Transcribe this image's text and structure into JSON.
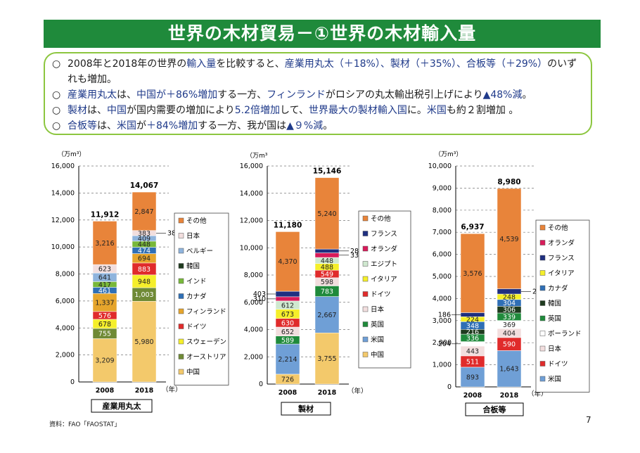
{
  "header": {
    "title": "世界の木材貿易－①世界の木材輸入量"
  },
  "summary": [
    [
      {
        "t": "2008年と2018年の世界の",
        "c": false
      },
      {
        "t": "輸入量",
        "c": true
      },
      {
        "t": "を比較すると、",
        "c": false
      },
      {
        "t": "産業用丸太（＋18%）、製材（＋35%）、合板等（＋29%）",
        "c": true
      },
      {
        "t": "のいずれも増加。",
        "c": false
      }
    ],
    [
      {
        "t": "産業用丸太",
        "c": true
      },
      {
        "t": "は、",
        "c": false
      },
      {
        "t": "中国が＋86%増加",
        "c": true
      },
      {
        "t": "する一方、",
        "c": false
      },
      {
        "t": "フィンランド",
        "c": true
      },
      {
        "t": "がロシアの丸太輸出税引上げにより",
        "c": false
      },
      {
        "t": "▲48%減",
        "c": true
      },
      {
        "t": "。",
        "c": false
      }
    ],
    [
      {
        "t": "製材",
        "c": true
      },
      {
        "t": "は、",
        "c": false
      },
      {
        "t": "中国",
        "c": true
      },
      {
        "t": "が国内需要の増加により",
        "c": false
      },
      {
        "t": "5.2倍増加",
        "c": true
      },
      {
        "t": "して、",
        "c": false
      },
      {
        "t": "世界最大の製材輸入国",
        "c": true
      },
      {
        "t": "に。",
        "c": false
      },
      {
        "t": "米国",
        "c": true
      },
      {
        "t": "も約２割増加 。",
        "c": false
      }
    ],
    [
      {
        "t": "合板等",
        "c": true
      },
      {
        "t": "は、",
        "c": false
      },
      {
        "t": "米国",
        "c": true
      },
      {
        "t": "が",
        "c": false
      },
      {
        "t": "＋84%増加",
        "c": true
      },
      {
        "t": "する一方、我が国は",
        "c": false
      },
      {
        "t": "▲９%減",
        "c": true
      },
      {
        "t": "。",
        "c": false
      }
    ]
  ],
  "summary_bullet": "○",
  "footer": {
    "source": "資料：FAO「FAOSTAT」",
    "page_number": "7"
  },
  "colors": {
    "title_bg": "#1f8a3b",
    "border": "#8cc63f",
    "highlight_text": "#1f3a8a"
  },
  "chart_data": [
    {
      "type": "bar",
      "stacked": true,
      "title": "産業用丸太",
      "unit_label": "（万m³）",
      "xlabel": "（年）",
      "categories": [
        "2008",
        "2018"
      ],
      "totals": [
        "11,912",
        "14,067"
      ],
      "ylim": [
        0,
        16000
      ],
      "yticks": [
        "0",
        "2,000",
        "4,000",
        "6,000",
        "8,000",
        "10,000",
        "12,000",
        "14,000",
        "16,000"
      ],
      "ytick_values": [
        0,
        2000,
        4000,
        6000,
        8000,
        10000,
        12000,
        14000,
        16000
      ],
      "grid": true,
      "legend_position": "right",
      "series": [
        {
          "name": "中国",
          "color": "#f3c96b",
          "values": [
            3209,
            5980
          ],
          "labels": [
            "3,209",
            "5,980"
          ]
        },
        {
          "name": "オーストリア",
          "color": "#6f8a35",
          "values": [
            755,
            1003
          ],
          "labels": [
            "755",
            "1,003"
          ]
        },
        {
          "name": "スウェーデン",
          "color": "#f5ef2a",
          "values": [
            678,
            948
          ],
          "labels": [
            "678",
            "948"
          ]
        },
        {
          "name": "ドイツ",
          "color": "#e02b2b",
          "values": [
            576,
            883
          ],
          "labels": [
            "576",
            "883"
          ]
        },
        {
          "name": "フィンランド",
          "color": "#e6a52c",
          "values": [
            1337,
            694
          ],
          "labels": [
            "1,337",
            "694"
          ]
        },
        {
          "name": "カナダ",
          "color": "#2f6fb5",
          "values": [
            461,
            474
          ],
          "labels": [
            "461",
            "474"
          ]
        },
        {
          "name": "インド",
          "color": "#78b83a",
          "values": [
            417,
            448
          ],
          "labels": [
            "417",
            "448"
          ]
        },
        {
          "name": "韓国",
          "color": "#1e3a1e",
          "values": [
            0,
            0
          ],
          "labels": [
            "",
            ""
          ]
        },
        {
          "name": "ベルギー",
          "color": "#8fb4dd",
          "values": [
            641,
            409
          ],
          "labels": [
            "641",
            "409"
          ]
        },
        {
          "name": "日本",
          "color": "#f2dede",
          "values": [
            623,
            383
          ],
          "labels": [
            "623",
            "383"
          ]
        },
        {
          "name": "その他",
          "color": "#e8843a",
          "values": [
            3216,
            2847
          ],
          "labels": [
            "3,216",
            "2,847"
          ]
        }
      ],
      "side_labels": [
        {
          "text": "383",
          "series": "日本",
          "bar": 1
        }
      ]
    },
    {
      "type": "bar",
      "stacked": true,
      "title": "製材",
      "unit_label": "（万m³",
      "xlabel": "（年）",
      "categories": [
        "2008",
        "2018"
      ],
      "totals": [
        "11,180",
        "15,146"
      ],
      "ylim": [
        0,
        16000
      ],
      "yticks": [
        "0",
        "2,000",
        "4,000",
        "6,000",
        "8,000",
        "10,000",
        "12,000",
        "14,000",
        "16,000"
      ],
      "ytick_values": [
        0,
        2000,
        4000,
        6000,
        8000,
        10000,
        12000,
        14000,
        16000
      ],
      "grid": true,
      "legend_position": "right",
      "series": [
        {
          "name": "中国",
          "color": "#f3c96b",
          "values": [
            726,
            3755
          ],
          "labels": [
            "726",
            "3,755"
          ]
        },
        {
          "name": "米国",
          "color": "#6f9fd6",
          "values": [
            2214,
            2667
          ],
          "labels": [
            "2,214",
            "2,667"
          ]
        },
        {
          "name": "英国",
          "color": "#1f8a3b",
          "values": [
            589,
            783
          ],
          "labels": [
            "589",
            "783"
          ]
        },
        {
          "name": "日本",
          "color": "#f2dede",
          "values": [
            652,
            598
          ],
          "labels": [
            "652",
            "598"
          ]
        },
        {
          "name": "ドイツ",
          "color": "#e02b2b",
          "values": [
            630,
            549
          ],
          "labels": [
            "630",
            "549"
          ]
        },
        {
          "name": "イタリア",
          "color": "#f5ef2a",
          "values": [
            673,
            488
          ],
          "labels": [
            "673",
            "488"
          ]
        },
        {
          "name": "エジプト",
          "color": "#cfe8cf",
          "values": [
            612,
            448
          ],
          "labels": [
            "612",
            "448"
          ]
        },
        {
          "name": "オランダ",
          "color": "#d81b5a",
          "values": [
            310,
            337
          ],
          "labels": [
            "",
            ""
          ]
        },
        {
          "name": "フランス",
          "color": "#1f2f80",
          "values": [
            403,
            281
          ],
          "labels": [
            "",
            ""
          ]
        },
        {
          "name": "その他",
          "color": "#e8843a",
          "values": [
            4370,
            5240
          ],
          "labels": [
            "4,370",
            "5,240"
          ]
        }
      ],
      "side_labels": [
        {
          "text": "403",
          "series": "フランス",
          "bar": 0,
          "side": "left"
        },
        {
          "text": "310",
          "series": "オランダ",
          "bar": 0,
          "side": "left"
        },
        {
          "text": "281",
          "series": "フランス",
          "bar": 1,
          "side": "right"
        },
        {
          "text": "337",
          "series": "オランダ",
          "bar": 1,
          "side": "right"
        }
      ]
    },
    {
      "type": "bar",
      "stacked": true,
      "title": "合板等",
      "unit_label": "（万m³）",
      "xlabel": "（年）",
      "categories": [
        "2008",
        "2018"
      ],
      "totals": [
        "6,937",
        "8,980"
      ],
      "ylim": [
        0,
        10000
      ],
      "yticks": [
        "0",
        "1,000",
        "2,000",
        "3,000",
        "4,000",
        "5,000",
        "6,000",
        "7,000",
        "8,000",
        "9,000",
        "10,000"
      ],
      "ytick_values": [
        0,
        1000,
        2000,
        3000,
        4000,
        5000,
        6000,
        7000,
        8000,
        9000,
        10000
      ],
      "grid": true,
      "legend_position": "right",
      "series": [
        {
          "name": "米国",
          "color": "#6f9fd6",
          "values": [
            893,
            1643
          ],
          "labels": [
            "893",
            "1,643"
          ]
        },
        {
          "name": "ドイツ",
          "color": "#e02b2b",
          "values": [
            511,
            590
          ],
          "labels": [
            "511",
            "590"
          ]
        },
        {
          "name": "日本",
          "color": "#f2dede",
          "values": [
            443,
            404
          ],
          "labels": [
            "443",
            "404"
          ]
        },
        {
          "name": "ポーランド",
          "color": "#ffffff",
          "values": [
            204,
            369
          ],
          "labels": [
            "",
            "369"
          ]
        },
        {
          "name": "英国",
          "color": "#1f8a3b",
          "values": [
            336,
            339
          ],
          "labels": [
            "336",
            "339"
          ]
        },
        {
          "name": "韓国",
          "color": "#1e3a1e",
          "values": [
            216,
            306
          ],
          "labels": [
            "216",
            "306"
          ]
        },
        {
          "name": "カナダ",
          "color": "#2f6fb5",
          "values": [
            348,
            304
          ],
          "labels": [
            "348",
            "304"
          ]
        },
        {
          "name": "イタリア",
          "color": "#f5ef2a",
          "values": [
            224,
            248
          ],
          "labels": [
            "224",
            "248"
          ]
        },
        {
          "name": "フランス",
          "color": "#1f2f80",
          "values": [
            186,
            239
          ],
          "labels": [
            "",
            ""
          ]
        },
        {
          "name": "オランダ",
          "color": "#d81b5a",
          "values": [
            0,
            0
          ],
          "labels": [
            "",
            ""
          ]
        },
        {
          "name": "その他",
          "color": "#e8843a",
          "values": [
            3576,
            4539
          ],
          "labels": [
            "3,576",
            "4,539"
          ]
        }
      ],
      "side_labels": [
        {
          "text": "186",
          "series": "フランス",
          "bar": 0,
          "side": "left"
        },
        {
          "text": "204",
          "series": "ポーランド",
          "bar": 0,
          "side": "left"
        },
        {
          "text": "239",
          "series": "フランス",
          "bar": 1,
          "side": "right"
        }
      ]
    }
  ]
}
